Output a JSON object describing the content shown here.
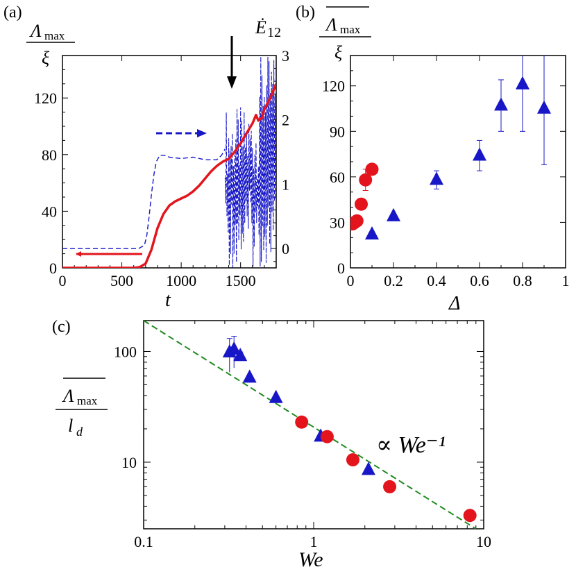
{
  "colors": {
    "red": "#e3141c",
    "blue": "#1717c8",
    "green": "#1e8a1e",
    "black": "#000000"
  },
  "chart_data": [
    {
      "panel_label": "(a)",
      "type": "line",
      "xlabel": "t",
      "ylabel": "Λ max / ξ",
      "ylabel_parts": {
        "num": "Λ",
        "sub": "max",
        "den": "ξ"
      },
      "y2label": "Ė 12",
      "y2label_parts": {
        "main": "Ė",
        "sub": "12"
      },
      "xlim": [
        0,
        1800
      ],
      "ylim": [
        0,
        150
      ],
      "y2lim": [
        -0.3,
        3
      ],
      "xticks": [
        "0",
        "500",
        "1000",
        "1500"
      ],
      "yticks": [
        "0",
        "40",
        "80",
        "120"
      ],
      "y2ticks": [
        "0",
        "1",
        "2",
        "3"
      ],
      "grid": false,
      "annotations": [
        "red arrow pointing left (red curve uses left axis)",
        "blue dashed arrow pointing right (blue curve uses right axis)",
        "black arrow pointing down near t = 1430"
      ],
      "series": [
        {
          "axis": "left",
          "style": "solid-red",
          "x": [
            0,
            600,
            650,
            700,
            750,
            800,
            850,
            900,
            950,
            1000,
            1050,
            1100,
            1150,
            1200,
            1250,
            1300,
            1350,
            1400,
            1450,
            1500,
            1550,
            1600,
            1630,
            1650,
            1680,
            1700,
            1750,
            1800
          ],
          "y": [
            0,
            0,
            0.5,
            3,
            13,
            28,
            38,
            44,
            47,
            49,
            51,
            54,
            58,
            63,
            68,
            72,
            75,
            77,
            82,
            88,
            95,
            102,
            108,
            104,
            106,
            112,
            120,
            130
          ]
        },
        {
          "axis": "right",
          "style": "dashed-blue",
          "x": [
            0,
            640,
            690,
            710,
            730,
            750,
            770,
            790,
            820,
            860,
            900,
            1000,
            1100,
            1200,
            1300,
            1340,
            1370
          ],
          "y": [
            0,
            0,
            0.05,
            0.2,
            0.5,
            0.85,
            1.15,
            1.35,
            1.45,
            1.45,
            1.42,
            1.4,
            1.42,
            1.38,
            1.38,
            1.45,
            1.55
          ]
        }
      ]
    },
    {
      "panel_label": "(b)",
      "type": "scatter",
      "xlabel": "Δ",
      "ylabel": "Λ max (overlined) / ξ",
      "ylabel_parts": {
        "num": "Λ",
        "sub": "max",
        "den": "ξ"
      },
      "xlim": [
        0,
        1
      ],
      "ylim": [
        0,
        140
      ],
      "xticks": [
        "0",
        "0.2",
        "0.4",
        "0.6",
        "0.8",
        "1"
      ],
      "yticks": [
        "0",
        "30",
        "60",
        "90",
        "120"
      ],
      "grid": false,
      "series": [
        {
          "marker": "circle-red",
          "points": [
            [
              0.01,
              29,
              0
            ],
            [
              0.02,
              30,
              0
            ],
            [
              0.03,
              31,
              0
            ],
            [
              0.05,
              42,
              0
            ],
            [
              0.07,
              58,
              7
            ],
            [
              0.1,
              65,
              0
            ]
          ]
        },
        {
          "marker": "triangle-blue",
          "points": [
            [
              0.1,
              22,
              0
            ],
            [
              0.2,
              34,
              0
            ],
            [
              0.4,
              58,
              6
            ],
            [
              0.6,
              74,
              10
            ],
            [
              0.7,
              107,
              17
            ],
            [
              0.8,
              121,
              31
            ],
            [
              0.9,
              105,
              37
            ]
          ]
        }
      ]
    },
    {
      "panel_label": "(c)",
      "type": "scatter",
      "xlabel": "We",
      "ylabel": "Λ max (overlined) / l d",
      "ylabel_parts": {
        "num": "Λ",
        "sub": "max",
        "den_main": "l",
        "den_sub": "d"
      },
      "xscale": "log",
      "yscale": "log",
      "xlim": [
        0.1,
        10
      ],
      "ylim": [
        2.5,
        190
      ],
      "xticks": [
        "0.1",
        "1",
        "10"
      ],
      "yticks": [
        "10",
        "100"
      ],
      "grid": false,
      "fit_label": "∝ We⁻¹",
      "fit_line": {
        "style": "dashed-green",
        "x": [
          0.1,
          9.0
        ],
        "y": [
          190,
          2.5
        ]
      },
      "series": [
        {
          "marker": "triangle-blue",
          "points": [
            [
              0.32,
              98,
              33
            ],
            [
              0.34,
              104,
              33
            ],
            [
              0.37,
              91,
              8
            ],
            [
              0.42,
              58,
              0
            ],
            [
              0.6,
              38,
              0
            ],
            [
              1.1,
              17,
              0
            ],
            [
              2.1,
              8.5,
              0
            ]
          ]
        },
        {
          "marker": "circle-red",
          "points": [
            [
              0.85,
              23,
              0
            ],
            [
              1.2,
              17,
              0
            ],
            [
              1.7,
              10.5,
              0
            ],
            [
              2.8,
              6,
              0.5
            ],
            [
              8.3,
              3.3,
              0
            ]
          ]
        }
      ]
    }
  ]
}
